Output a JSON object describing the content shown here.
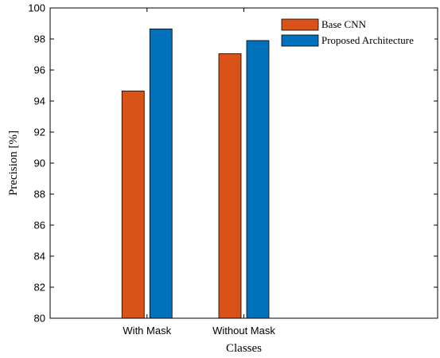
{
  "chart_data": {
    "type": "bar",
    "title": "",
    "xlabel": "Classes",
    "ylabel": "Precision [%]",
    "categories": [
      "With Mask",
      "Without Mask"
    ],
    "series": [
      {
        "name": "Base CNN",
        "values": [
          94.65,
          97.05
        ],
        "color": "#D95319"
      },
      {
        "name": "Proposed Architecture",
        "values": [
          98.65,
          97.9
        ],
        "color": "#0072BD"
      }
    ],
    "ylim": [
      80,
      100
    ],
    "yticks": [
      "80",
      "82",
      "84",
      "86",
      "88",
      "90",
      "92",
      "94",
      "96",
      "98",
      "100"
    ],
    "grid": false,
    "legend_position": "top-right"
  }
}
